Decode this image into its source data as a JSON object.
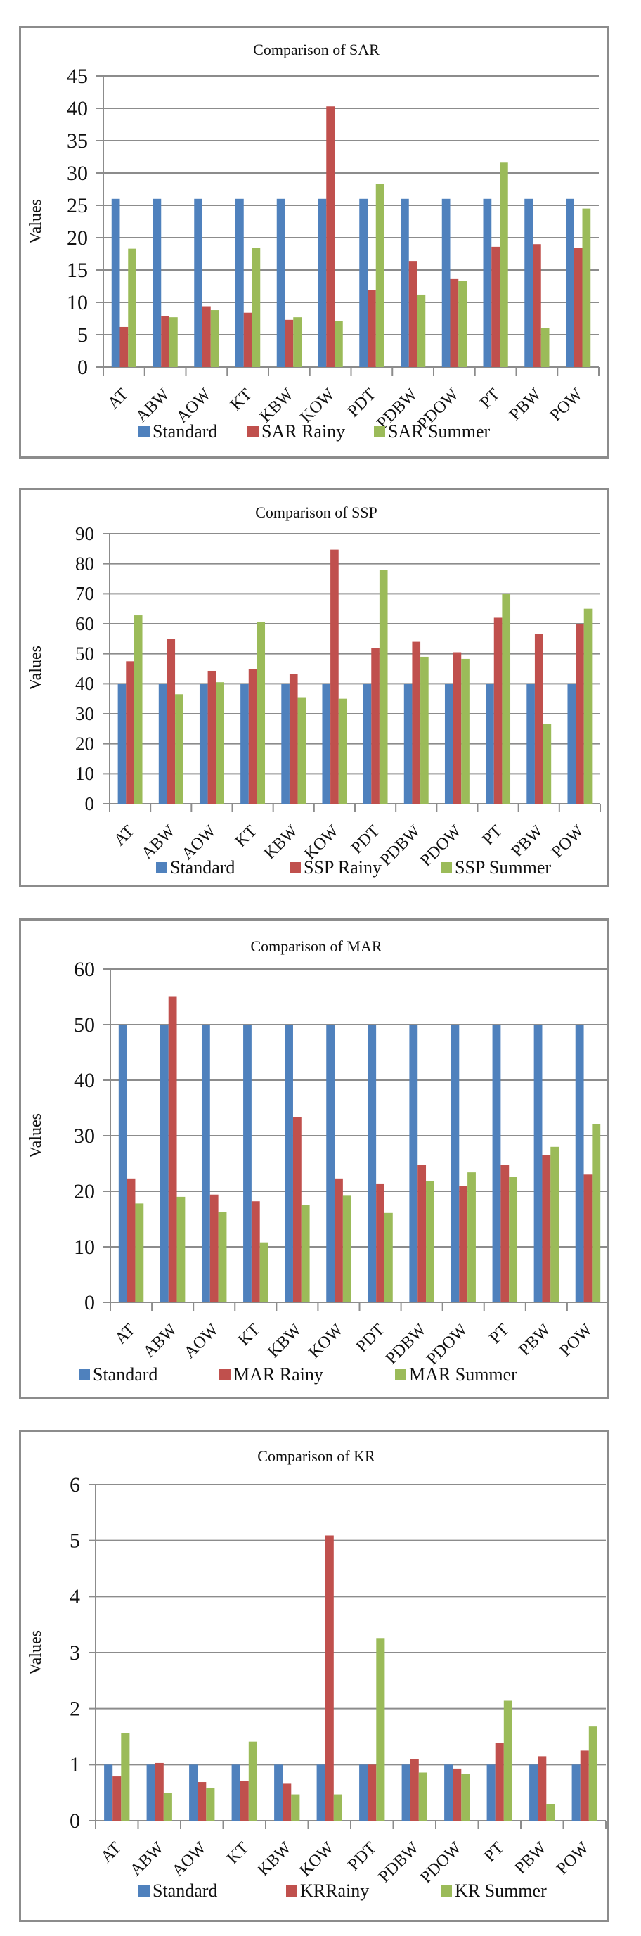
{
  "colors": {
    "standard": "#4F81BD",
    "rainy": "#C0504D",
    "summer": "#9BBB59",
    "grid": "#8c8c8c",
    "frame": "#8c8c8c"
  },
  "chart_data": [
    {
      "type": "bar",
      "title": "Comparison of SAR",
      "xlabel": "",
      "ylabel": "Values",
      "ylim": [
        0,
        45
      ],
      "ytick_step": 5,
      "grid": true,
      "legend": "bottom",
      "categories": [
        "AT",
        "ABW",
        "AOW",
        "KT",
        "KBW",
        "KOW",
        "PDT",
        "PDBW",
        "PDOW",
        "PT",
        "PBW",
        "POW"
      ],
      "series": [
        {
          "name": "Standard",
          "values": [
            26,
            26,
            26,
            26,
            26,
            26,
            26,
            26,
            26,
            26,
            26,
            26
          ]
        },
        {
          "name": "SAR Rainy",
          "values": [
            6.2,
            7.9,
            9.4,
            8.4,
            7.3,
            40.3,
            11.9,
            16.4,
            13.6,
            18.6,
            19.0,
            18.4
          ]
        },
        {
          "name": "SAR Summer",
          "values": [
            18.3,
            7.7,
            8.8,
            18.4,
            7.7,
            7.1,
            28.3,
            11.2,
            13.3,
            31.6,
            6.0,
            24.5
          ]
        }
      ]
    },
    {
      "type": "bar",
      "title": "Comparison of SSP",
      "xlabel": "",
      "ylabel": "Values",
      "ylim": [
        0,
        90
      ],
      "ytick_step": 10,
      "grid": true,
      "legend": "bottom",
      "categories": [
        "AT",
        "ABW",
        "AOW",
        "KT",
        "KBW",
        "KOW",
        "PDT",
        "PDBW",
        "PDOW",
        "PT",
        "PBW",
        "POW"
      ],
      "series": [
        {
          "name": "Standard",
          "values": [
            40,
            40,
            40,
            40,
            40,
            40,
            40,
            40,
            40,
            40,
            40,
            40
          ]
        },
        {
          "name": "SSP Rainy",
          "values": [
            47.5,
            55,
            44.3,
            45,
            43.2,
            84.7,
            52,
            54,
            50.5,
            62,
            56.5,
            60
          ]
        },
        {
          "name": "SSP Summer",
          "values": [
            62.8,
            36.5,
            40.5,
            60.5,
            35.5,
            35,
            78,
            49,
            48.3,
            70,
            26.5,
            65
          ]
        }
      ]
    },
    {
      "type": "bar",
      "title": "Comparison of MAR",
      "xlabel": "",
      "ylabel": "Values",
      "ylim": [
        0,
        60
      ],
      "ytick_step": 10,
      "grid": true,
      "legend": "bottom",
      "categories": [
        "AT",
        "ABW",
        "AOW",
        "KT",
        "KBW",
        "KOW",
        "PDT",
        "PDBW",
        "PDOW",
        "PT",
        "PBW",
        "POW"
      ],
      "series": [
        {
          "name": "Standard",
          "values": [
            50,
            50,
            50,
            50,
            50,
            50,
            50,
            50,
            50,
            50,
            50,
            50
          ]
        },
        {
          "name": "MAR Rainy",
          "values": [
            22.3,
            55,
            19.4,
            18.2,
            33.3,
            22.3,
            21.4,
            24.8,
            20.9,
            24.8,
            26.5,
            23.0
          ]
        },
        {
          "name": "MAR Summer",
          "values": [
            17.8,
            19.0,
            16.3,
            10.8,
            17.5,
            19.2,
            16.1,
            21.9,
            23.4,
            22.6,
            28.0,
            32.1
          ]
        }
      ]
    },
    {
      "type": "bar",
      "title": "Comparison of KR",
      "xlabel": "",
      "ylabel": "Values",
      "ylim": [
        0,
        6
      ],
      "ytick_step": 1,
      "grid": true,
      "legend": "bottom",
      "categories": [
        "AT",
        "ABW",
        "AOW",
        "KT",
        "KBW",
        "KOW",
        "PDT",
        "PDBW",
        "PDOW",
        "PT",
        "PBW",
        "POW"
      ],
      "series": [
        {
          "name": "Standard",
          "values": [
            1,
            1,
            1,
            1,
            1,
            1,
            1,
            1,
            1,
            1,
            1,
            1
          ]
        },
        {
          "name": "KRRainy",
          "values": [
            0.79,
            1.03,
            0.69,
            0.71,
            0.66,
            5.09,
            1.0,
            1.1,
            0.93,
            1.39,
            1.15,
            1.25
          ]
        },
        {
          "name": "KR Summer",
          "values": [
            1.56,
            0.49,
            0.59,
            1.41,
            0.47,
            0.47,
            3.26,
            0.86,
            0.83,
            2.14,
            0.3,
            1.68
          ]
        }
      ]
    }
  ]
}
